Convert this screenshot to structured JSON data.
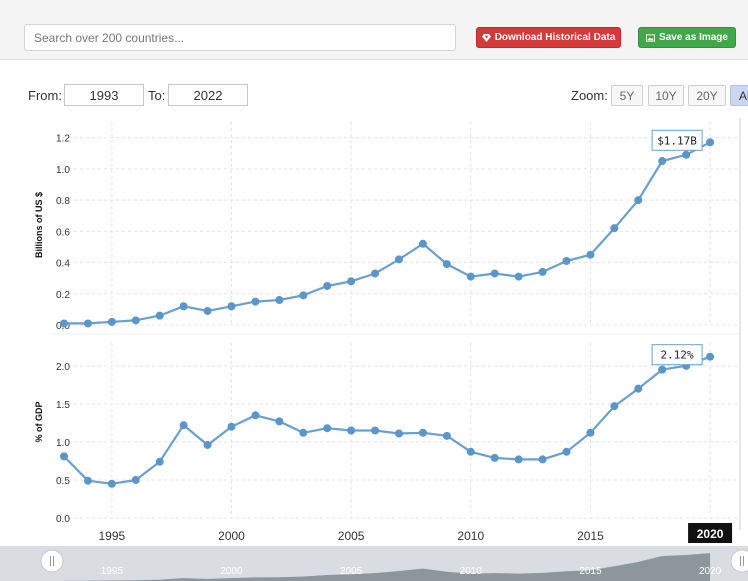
{
  "search": {
    "placeholder": "Search over 200 countries..."
  },
  "buttons": {
    "download_label": "Download Historical Data",
    "save_label": "Save as Image"
  },
  "range": {
    "from_label": "From:",
    "from_value": "1993",
    "to_label": "To:",
    "to_value": "2022"
  },
  "zoom": {
    "label": "Zoom:",
    "options": [
      "5Y",
      "10Y",
      "20Y",
      "All"
    ],
    "active": "All"
  },
  "colors": {
    "series_line": "#6a9fce",
    "series_point": "#5b95c9",
    "download_button": "#d43a3a",
    "save_button": "#41a84a"
  },
  "chart_data": {
    "type": "line",
    "x_ticks": [
      1995,
      2000,
      2005,
      2010,
      2015,
      2020
    ],
    "x_range": [
      1993,
      2021
    ],
    "hover": {
      "year_badge": "2020"
    },
    "navigator_labels": [
      "1995",
      "2000",
      "2005",
      "2010",
      "2015",
      "2020"
    ],
    "panels": [
      {
        "ylabel": "Billions of US $",
        "ylim": [
          0,
          1.3
        ],
        "y_ticks": [
          "0.0",
          "0.2",
          "0.4",
          "0.6",
          "0.8",
          "1.0",
          "1.2"
        ],
        "y_tick_values": [
          0,
          0.2,
          0.4,
          0.6,
          0.8,
          1.0,
          1.2
        ],
        "callout": "$1.17B",
        "series": [
          {
            "x": [
              1993,
              1994,
              1995,
              1996,
              1997,
              1998,
              1999,
              2000,
              2001,
              2002,
              2003,
              2004,
              2005,
              2006,
              2007,
              2008,
              2009,
              2010,
              2011,
              2012,
              2013,
              2014,
              2015,
              2016,
              2017,
              2018,
              2019,
              2020
            ],
            "values": [
              0.01,
              0.01,
              0.02,
              0.03,
              0.06,
              0.12,
              0.09,
              0.12,
              0.15,
              0.16,
              0.19,
              0.25,
              0.28,
              0.33,
              0.42,
              0.52,
              0.39,
              0.31,
              0.33,
              0.31,
              0.34,
              0.41,
              0.45,
              0.62,
              0.8,
              1.05,
              1.09,
              1.17
            ]
          }
        ]
      },
      {
        "ylabel": "% of GDP",
        "ylim": [
          0,
          2.3
        ],
        "y_ticks": [
          "0.0",
          "0.5",
          "1.0",
          "1.5",
          "2.0"
        ],
        "y_tick_values": [
          0,
          0.5,
          1.0,
          1.5,
          2.0
        ],
        "callout": "2.12%",
        "series": [
          {
            "x": [
              1993,
              1994,
              1995,
              1996,
              1997,
              1998,
              1999,
              2000,
              2001,
              2002,
              2003,
              2004,
              2005,
              2006,
              2007,
              2008,
              2009,
              2010,
              2011,
              2012,
              2013,
              2014,
              2015,
              2016,
              2017,
              2018,
              2019,
              2020
            ],
            "values": [
              0.81,
              0.49,
              0.45,
              0.5,
              0.74,
              1.22,
              0.96,
              1.2,
              1.35,
              1.27,
              1.12,
              1.18,
              1.15,
              1.15,
              1.11,
              1.12,
              1.08,
              0.87,
              0.79,
              0.77,
              0.77,
              0.87,
              1.12,
              1.47,
              1.7,
              1.95,
              2.0,
              2.12
            ]
          }
        ]
      }
    ]
  }
}
